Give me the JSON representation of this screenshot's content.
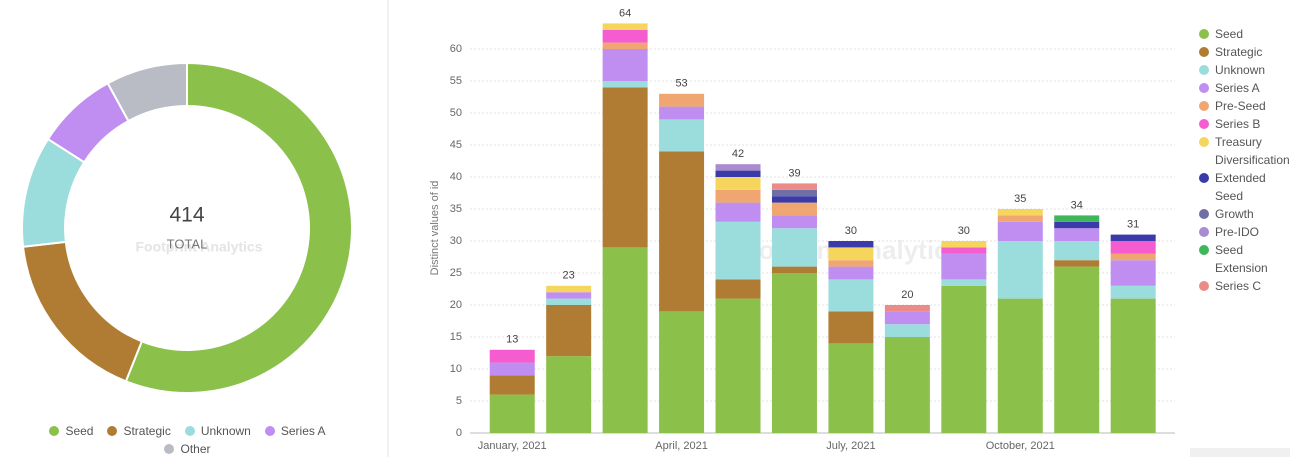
{
  "chart_data": [
    {
      "type": "donut",
      "total": 414,
      "center_label": "TOTAL",
      "watermark": "Footprint Analytics",
      "categories": [
        "Seed",
        "Strategic",
        "Unknown",
        "Series A",
        "Other"
      ],
      "values": [
        232,
        71,
        45,
        33,
        33
      ],
      "colors": [
        "#8bc04b",
        "#b07c33",
        "#9bdcdc",
        "#bf8ef0",
        "#b9bcc4"
      ],
      "legend": "bottom"
    },
    {
      "type": "bar",
      "stacked": true,
      "ylabel": "Distinct values of id",
      "watermark": "Footprint Analytics",
      "categories": [
        "January, 2021",
        null,
        null,
        "April, 2021",
        null,
        null,
        "July, 2021",
        null,
        null,
        "October, 2021",
        null,
        null
      ],
      "totals": [
        13,
        23,
        64,
        53,
        42,
        39,
        30,
        20,
        30,
        35,
        34,
        31
      ],
      "ylim": [
        0,
        66
      ],
      "yticks": [
        0,
        5,
        10,
        15,
        20,
        25,
        30,
        35,
        40,
        45,
        50,
        55,
        60
      ],
      "grid": true,
      "legend": "right",
      "series": [
        {
          "name": "Seed",
          "color": "#8bc04b",
          "values": [
            6,
            12,
            29,
            19,
            21,
            25,
            14,
            15,
            23,
            21,
            26,
            21
          ]
        },
        {
          "name": "Strategic",
          "color": "#b07c33",
          "values": [
            3,
            8,
            25,
            25,
            3,
            1,
            5,
            0,
            0,
            0,
            1,
            0
          ]
        },
        {
          "name": "Unknown",
          "color": "#9bdcdc",
          "values": [
            0,
            1,
            1,
            5,
            9,
            6,
            5,
            2,
            1,
            9,
            3,
            2
          ]
        },
        {
          "name": "Series A",
          "color": "#bf8ef0",
          "values": [
            2,
            1,
            5,
            2,
            3,
            2,
            2,
            2,
            4,
            3,
            2,
            4
          ]
        },
        {
          "name": "Pre-Seed",
          "color": "#f0a670",
          "values": [
            0,
            0,
            1,
            2,
            2,
            2,
            1,
            0,
            0,
            1,
            0,
            1
          ]
        },
        {
          "name": "Series B",
          "color": "#f45ccf",
          "values": [
            2,
            0,
            2,
            0,
            0,
            0,
            0,
            0,
            1,
            0,
            0,
            2
          ]
        },
        {
          "name": "Treasury Diversification",
          "color": "#f6d55c",
          "values": [
            0,
            1,
            1,
            0,
            2,
            0,
            2,
            0,
            1,
            1,
            0,
            0
          ]
        },
        {
          "name": "Extended Seed",
          "color": "#3a3aa8",
          "values": [
            0,
            0,
            0,
            0,
            1,
            1,
            1,
            0,
            0,
            0,
            1,
            1
          ]
        },
        {
          "name": "Growth",
          "color": "#6f6fa6",
          "values": [
            0,
            0,
            0,
            0,
            0,
            1,
            0,
            0,
            0,
            0,
            0,
            0
          ]
        },
        {
          "name": "Pre-IDO",
          "color": "#a98bd0",
          "values": [
            0,
            0,
            0,
            0,
            1,
            0,
            0,
            0,
            0,
            0,
            0,
            0
          ]
        },
        {
          "name": "Seed Extension",
          "color": "#3fb65a",
          "values": [
            0,
            0,
            0,
            0,
            0,
            0,
            0,
            0,
            0,
            0,
            1,
            0
          ]
        },
        {
          "name": "Series C",
          "color": "#ec8a88",
          "values": [
            0,
            0,
            0,
            0,
            0,
            1,
            0,
            1,
            0,
            0,
            0,
            0
          ]
        }
      ]
    }
  ]
}
